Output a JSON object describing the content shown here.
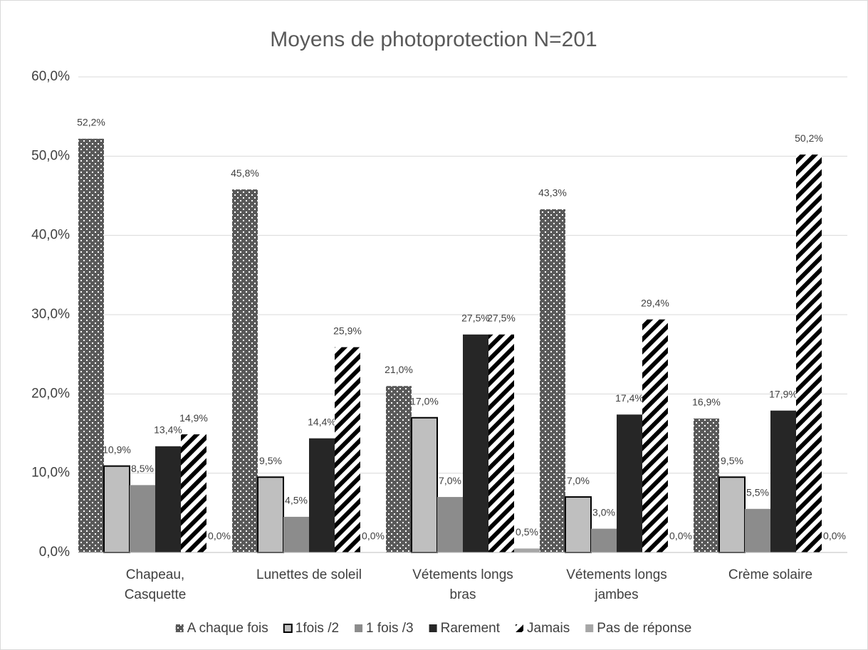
{
  "chart_data": {
    "type": "bar",
    "title": "Moyens de photoprotection N=201",
    "categories": [
      [
        "Chapeau,",
        "Casquette"
      ],
      [
        "Lunettes de soleil"
      ],
      [
        "Vétements longs",
        "bras"
      ],
      [
        "Vétements longs",
        "jambes"
      ],
      [
        "Crème solaire"
      ]
    ],
    "series": [
      {
        "name": "A chaque fois",
        "color": "#595959",
        "pattern": "dots",
        "values": [
          52.2,
          45.8,
          21.0,
          43.3,
          16.9
        ],
        "value_labels": [
          "52,2%",
          "45,8%",
          "21,0%",
          "43,3%",
          "16,9%"
        ]
      },
      {
        "name": "1fois /2",
        "color": "#bfbfbf",
        "outline": "#000000",
        "values": [
          10.9,
          9.5,
          17.0,
          7.0,
          9.5
        ],
        "value_labels": [
          "10,9%",
          "9,5%",
          "17,0%",
          "7,0%",
          "9,5%"
        ]
      },
      {
        "name": "1 fois /3",
        "color": "#8c8c8c",
        "values": [
          8.5,
          4.5,
          7.0,
          3.0,
          5.5
        ],
        "value_labels": [
          "8,5%",
          "4,5%",
          "7,0%",
          "3,0%",
          "5,5%"
        ]
      },
      {
        "name": "Rarement",
        "color": "#262626",
        "values": [
          13.4,
          14.4,
          27.5,
          17.4,
          17.9
        ],
        "value_labels": [
          "13,4%",
          "14,4%",
          "27,5%",
          "17,4%",
          "17,9%"
        ]
      },
      {
        "name": "Jamais",
        "color": "#000000",
        "pattern": "stripes",
        "values": [
          14.9,
          25.9,
          27.5,
          29.4,
          50.2
        ],
        "value_labels": [
          "14,9%",
          "25,9%",
          "27,5%",
          "29,4%",
          "50,2%"
        ]
      },
      {
        "name": "Pas de réponse",
        "color": "#a6a6a6",
        "values": [
          0.0,
          0.0,
          0.5,
          0.0,
          0.0
        ],
        "value_labels": [
          "0,0%",
          "0,0%",
          "0,5%",
          "0,0%",
          "0,0%"
        ]
      }
    ],
    "ylim": [
      0,
      60
    ],
    "yticks": [
      {
        "value": 0,
        "label": "0,0%"
      },
      {
        "value": 10,
        "label": "10,0%"
      },
      {
        "value": 20,
        "label": "20,0%"
      },
      {
        "value": 30,
        "label": "30,0%"
      },
      {
        "value": 40,
        "label": "40,0%"
      },
      {
        "value": 50,
        "label": "50,0%"
      },
      {
        "value": 60,
        "label": "60,0%"
      }
    ],
    "grid": true,
    "legend": "bottom"
  }
}
